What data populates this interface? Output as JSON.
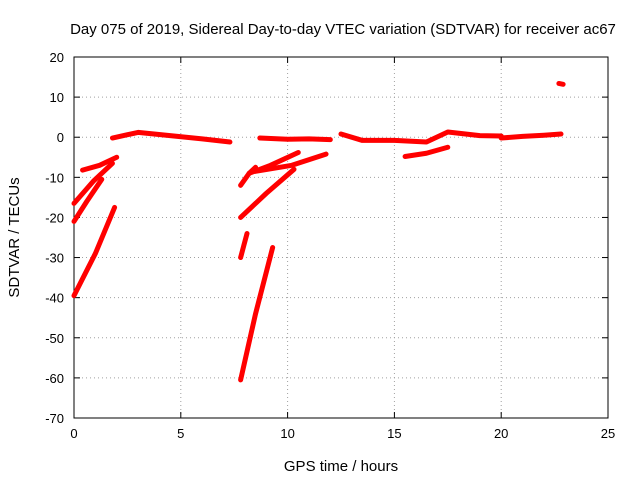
{
  "chart_data": {
    "type": "scatter",
    "title": "Day 075 of 2019, Sidereal Day-to-day VTEC variation (SDTVAR) for receiver ac67",
    "xlabel": "GPS time / hours",
    "ylabel": "SDTVAR / TECUs",
    "xlim": [
      0,
      25
    ],
    "ylim": [
      -70,
      20
    ],
    "xticks": [
      0,
      5,
      10,
      15,
      20,
      25
    ],
    "yticks": [
      -70,
      -60,
      -50,
      -40,
      -30,
      -20,
      -10,
      0,
      10,
      20
    ],
    "grid": true,
    "series_color": "#ff0000",
    "series": [
      {
        "name": "near-zero band 1",
        "x": [
          1.8,
          3.0,
          4.5,
          6.0,
          7.3
        ],
        "y": [
          -0.2,
          1.2,
          0.4,
          -0.4,
          -1.2
        ]
      },
      {
        "name": "near-zero band 2",
        "x": [
          8.7,
          10.0,
          11.0,
          12.0
        ],
        "y": [
          -0.2,
          -0.5,
          -0.4,
          -0.6
        ]
      },
      {
        "name": "near-zero band 3",
        "x": [
          12.5,
          13.5,
          15.0,
          16.5,
          17.5,
          19.0,
          20.0
        ],
        "y": [
          0.8,
          -0.8,
          -0.8,
          -1.2,
          1.3,
          0.4,
          0.3
        ]
      },
      {
        "name": "near-zero band 4",
        "x": [
          20.0,
          21.0,
          22.0,
          22.8
        ],
        "y": [
          -0.2,
          0.2,
          0.5,
          0.8
        ]
      },
      {
        "name": "rise 0.4-2.0h",
        "x": [
          0.4,
          1.2,
          2.0
        ],
        "y": [
          -8.2,
          -7.0,
          -5.0
        ]
      },
      {
        "name": "rise 0.0-1.8h (A)",
        "x": [
          0.0,
          0.9,
          1.8
        ],
        "y": [
          -16.5,
          -11.0,
          -6.5
        ]
      },
      {
        "name": "rise 0.0-1.3h",
        "x": [
          0.0,
          0.6,
          1.3
        ],
        "y": [
          -21.0,
          -16.0,
          -10.5
        ]
      },
      {
        "name": "rise 0.0-1.9h (B)",
        "x": [
          0.0,
          1.0,
          1.9
        ],
        "y": [
          -39.5,
          -29.0,
          -17.5
        ]
      },
      {
        "name": "rise 7.8-8.5h",
        "x": [
          7.8,
          8.2,
          8.5
        ],
        "y": [
          -12.0,
          -9.0,
          -7.5
        ]
      },
      {
        "name": "rise 8.2-10.5h",
        "x": [
          8.2,
          9.2,
          10.5
        ],
        "y": [
          -9.0,
          -7.0,
          -3.8
        ]
      },
      {
        "name": "rise 8.5-11.8h",
        "x": [
          8.5,
          10.2,
          11.8
        ],
        "y": [
          -8.5,
          -7.0,
          -4.2
        ]
      },
      {
        "name": "rise 7.8-10.3h",
        "x": [
          7.8,
          9.0,
          10.3
        ],
        "y": [
          -20.0,
          -14.0,
          -8.0
        ]
      },
      {
        "name": "dip 7.8-8.1h",
        "x": [
          7.8,
          7.95,
          8.1
        ],
        "y": [
          -30.0,
          -27.0,
          -24.0
        ]
      },
      {
        "name": "dip 7.8-9.3h",
        "x": [
          7.8,
          8.5,
          9.3
        ],
        "y": [
          -60.5,
          -44.0,
          -27.5
        ]
      },
      {
        "name": "dip 15.5-17.5h",
        "x": [
          15.5,
          16.5,
          17.5
        ],
        "y": [
          -4.8,
          -4.0,
          -2.5
        ]
      },
      {
        "name": "outlier",
        "x": [
          22.7,
          22.9
        ],
        "y": [
          13.4,
          13.2
        ]
      }
    ]
  }
}
